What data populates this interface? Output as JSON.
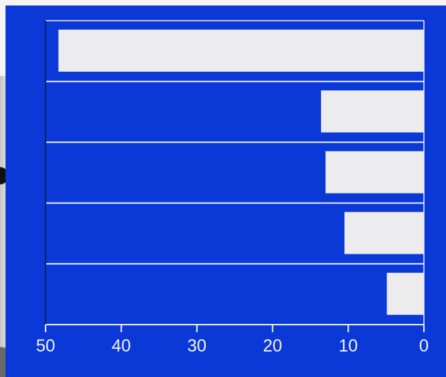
{
  "chart_data": {
    "type": "bar",
    "orientation": "horizontal",
    "x_axis_reversed": true,
    "categories": [
      "",
      "",
      "",
      "",
      ""
    ],
    "values": [
      48.3,
      13.6,
      13.0,
      10.5,
      4.9
    ],
    "xlim": [
      50,
      0
    ],
    "xticks": [
      "50",
      "40",
      "30",
      "20",
      "10",
      "0"
    ],
    "title": "",
    "xlabel": "",
    "ylabel": "",
    "grid": true
  },
  "colors": {
    "background": "#0b39d8",
    "bar": "#ececee",
    "grid": "#eef2ff",
    "text": "#f4f4f4"
  }
}
